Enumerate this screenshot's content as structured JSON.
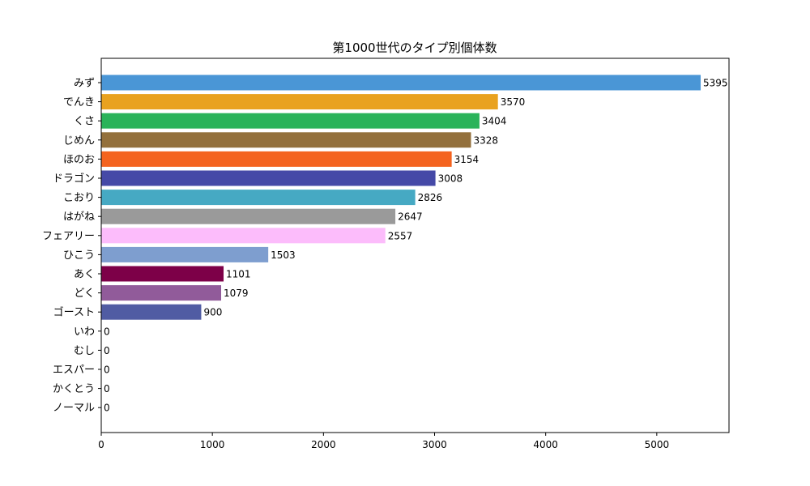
{
  "chart_data": {
    "type": "bar",
    "orientation": "horizontal",
    "title": "第1000世代のタイプ別個体数",
    "xlabel": "",
    "ylabel": "",
    "xlim": [
      0,
      5650
    ],
    "xticks": [
      0,
      1000,
      2000,
      3000,
      4000,
      5000
    ],
    "grid": false,
    "categories": [
      "みず",
      "でんき",
      "くさ",
      "じめん",
      "ほのお",
      "ドラゴン",
      "こおり",
      "はがね",
      "フェアリー",
      "ひこう",
      "あく",
      "どく",
      "ゴースト",
      "いわ",
      "むし",
      "エスパー",
      "かくとう",
      "ノーマル"
    ],
    "values": [
      5395,
      3570,
      3404,
      3328,
      3154,
      3008,
      2826,
      2647,
      2557,
      1503,
      1101,
      1079,
      900,
      0,
      0,
      0,
      0,
      0
    ],
    "colors": [
      "#4a96d6",
      "#e9a21f",
      "#2ab35a",
      "#93703c",
      "#f4631f",
      "#4549a7",
      "#46a9c3",
      "#9a9a9a",
      "#fcbcfb",
      "#7e9ecf",
      "#7d0048",
      "#915b9a",
      "#505ca3",
      "#b8a058",
      "#a8b820",
      "#f85888",
      "#c03028",
      "#a8a878"
    ]
  }
}
